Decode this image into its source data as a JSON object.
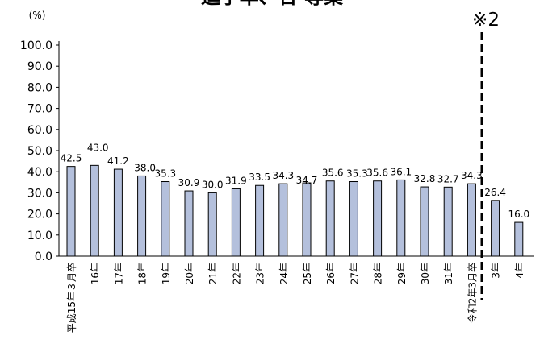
{
  "chart_data": {
    "type": "bar",
    "title": "進学率、合 専業",
    "ylabel": "(%)",
    "ylim": [
      0,
      100
    ],
    "yticks": [
      "0.0",
      "10.0",
      "20.0",
      "30.0",
      "40.0",
      "50.0",
      "60.0",
      "70.0",
      "80.0",
      "90.0",
      "100.0"
    ],
    "categories": [
      "平成15年３月卒",
      "16年",
      "17年",
      "18年",
      "19年",
      "20年",
      "21年",
      "22年",
      "23年",
      "24年",
      "25年",
      "26年",
      "27年",
      "28年",
      "29年",
      "30年",
      "31年",
      "令和2年3月卒",
      "3年",
      "4年"
    ],
    "values": [
      42.5,
      43.0,
      41.2,
      38.0,
      35.3,
      30.9,
      30.0,
      31.9,
      33.5,
      34.3,
      34.7,
      35.6,
      35.3,
      35.6,
      36.1,
      32.8,
      32.7,
      34.3,
      26.4,
      16.0
    ],
    "value_labels": [
      "42.5",
      "43.0",
      "41.2",
      "38.0",
      "35.3",
      "30.9",
      "30.0",
      "31.9",
      "33.5",
      "34.3",
      "34.7",
      "35.6",
      "35.3",
      "35.6",
      "36.1",
      "32.8",
      "32.7",
      "34.3",
      "26.4",
      "16.0"
    ],
    "annotation": "※2",
    "grid": false,
    "legend": "none",
    "bar_color": "#b4c0dc",
    "bar_border": "#000000"
  }
}
